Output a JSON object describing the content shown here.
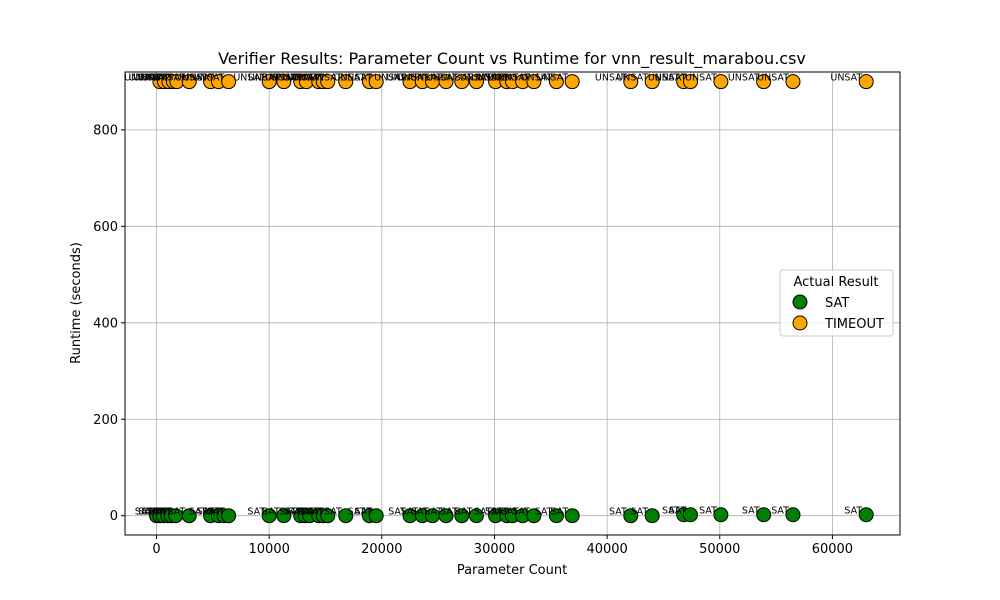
{
  "chart_data": {
    "type": "scatter",
    "title": "Verifier Results: Parameter Count vs Runtime for vnn_result_marabou.csv",
    "xlabel": "Parameter Count",
    "ylabel": "Runtime (seconds)",
    "xlim": [
      -2800,
      66000
    ],
    "ylim": [
      -40,
      920
    ],
    "xticks": [
      0,
      10000,
      20000,
      30000,
      40000,
      50000,
      60000
    ],
    "yticks": [
      0,
      200,
      400,
      600,
      800
    ],
    "grid": true,
    "legend": {
      "title": "Actual Result",
      "placement": "center-right"
    },
    "series": [
      {
        "name": "SAT",
        "color": "#008000",
        "points": [
          {
            "x": 0,
            "y": 0,
            "label": "SAT"
          },
          {
            "x": 300,
            "y": 0,
            "label": "SAT"
          },
          {
            "x": 600,
            "y": 0,
            "label": "SAT"
          },
          {
            "x": 1000,
            "y": 0,
            "label": "SAT"
          },
          {
            "x": 1300,
            "y": 0,
            "label": "SAT"
          },
          {
            "x": 1700,
            "y": 0,
            "label": "SAT"
          },
          {
            "x": 2900,
            "y": 0,
            "label": "SAT"
          },
          {
            "x": 4800,
            "y": 0,
            "label": "SAT"
          },
          {
            "x": 5500,
            "y": 0,
            "label": "SAT"
          },
          {
            "x": 6000,
            "y": 0,
            "label": "SAT"
          },
          {
            "x": 6400,
            "y": 0,
            "label": "SAT"
          },
          {
            "x": 10000,
            "y": 0,
            "label": "SAT"
          },
          {
            "x": 11300,
            "y": 0,
            "label": "SAT"
          },
          {
            "x": 12800,
            "y": 0,
            "label": "SAT"
          },
          {
            "x": 13200,
            "y": 0,
            "label": "SAT"
          },
          {
            "x": 13600,
            "y": 0,
            "label": "SAT"
          },
          {
            "x": 14400,
            "y": 0,
            "label": "SAT"
          },
          {
            "x": 14800,
            "y": 0,
            "label": "SAT"
          },
          {
            "x": 15200,
            "y": 0,
            "label": "SAT"
          },
          {
            "x": 16800,
            "y": 0,
            "label": "SAT"
          },
          {
            "x": 18900,
            "y": 0,
            "label": "SAT"
          },
          {
            "x": 19500,
            "y": 0,
            "label": "SAT"
          },
          {
            "x": 22500,
            "y": 0,
            "label": "SAT"
          },
          {
            "x": 23600,
            "y": 0,
            "label": "SAT"
          },
          {
            "x": 24500,
            "y": 0,
            "label": "SAT"
          },
          {
            "x": 25700,
            "y": 0,
            "label": "SAT"
          },
          {
            "x": 27100,
            "y": 0,
            "label": "SAT"
          },
          {
            "x": 28400,
            "y": 0,
            "label": "SAT"
          },
          {
            "x": 30100,
            "y": 0,
            "label": "SAT"
          },
          {
            "x": 31100,
            "y": 0,
            "label": "SAT"
          },
          {
            "x": 31600,
            "y": 0,
            "label": "SAT"
          },
          {
            "x": 32500,
            "y": 0,
            "label": "SAT"
          },
          {
            "x": 33500,
            "y": 0,
            "label": "SAT"
          },
          {
            "x": 35500,
            "y": 0,
            "label": "SAT"
          },
          {
            "x": 36900,
            "y": 0,
            "label": "SAT"
          },
          {
            "x": 42100,
            "y": 0,
            "label": "SAT"
          },
          {
            "x": 44000,
            "y": 0,
            "label": "SAT"
          },
          {
            "x": 46800,
            "y": 2,
            "label": "SAT"
          },
          {
            "x": 47400,
            "y": 2,
            "label": "SAT"
          },
          {
            "x": 50100,
            "y": 2,
            "label": "SAT"
          },
          {
            "x": 53900,
            "y": 2,
            "label": "SAT"
          },
          {
            "x": 56500,
            "y": 2,
            "label": "SAT"
          },
          {
            "x": 63000,
            "y": 2,
            "label": "SAT"
          }
        ]
      },
      {
        "name": "TIMEOUT",
        "color": "#FFA500",
        "points": [
          {
            "x": 300,
            "y": 900,
            "label": "UNSAT"
          },
          {
            "x": 700,
            "y": 900,
            "label": "UNSAT"
          },
          {
            "x": 1100,
            "y": 900,
            "label": "UNSAT"
          },
          {
            "x": 1500,
            "y": 900,
            "label": "UNSAT"
          },
          {
            "x": 1800,
            "y": 900,
            "label": "UNSAT"
          },
          {
            "x": 2900,
            "y": 900,
            "label": "UNSAT"
          },
          {
            "x": 4800,
            "y": 900,
            "label": "UNSAT"
          },
          {
            "x": 5500,
            "y": 900,
            "label": "UNSAT"
          },
          {
            "x": 6400,
            "y": 900,
            "label": "UNSAT"
          },
          {
            "x": 10000,
            "y": 900,
            "label": "UNSAT"
          },
          {
            "x": 11300,
            "y": 900,
            "label": "UNSAT"
          },
          {
            "x": 12800,
            "y": 900,
            "label": "UNSAT"
          },
          {
            "x": 13300,
            "y": 900,
            "label": "UNSAT"
          },
          {
            "x": 14400,
            "y": 900,
            "label": "UNSAT"
          },
          {
            "x": 14800,
            "y": 900,
            "label": "UNSAT"
          },
          {
            "x": 15200,
            "y": 900,
            "label": "UNSAT"
          },
          {
            "x": 16800,
            "y": 900,
            "label": "UNSAT"
          },
          {
            "x": 18900,
            "y": 900,
            "label": "UNSAT"
          },
          {
            "x": 19500,
            "y": 900,
            "label": "UNSAT"
          },
          {
            "x": 22500,
            "y": 900,
            "label": "UNSAT"
          },
          {
            "x": 23600,
            "y": 900,
            "label": "UNSAT"
          },
          {
            "x": 24500,
            "y": 900,
            "label": "UNSAT"
          },
          {
            "x": 25700,
            "y": 900,
            "label": "UNSAT"
          },
          {
            "x": 27100,
            "y": 900,
            "label": "UNSAT"
          },
          {
            "x": 28400,
            "y": 900,
            "label": "UNSAT"
          },
          {
            "x": 30100,
            "y": 900,
            "label": "UNSAT"
          },
          {
            "x": 31100,
            "y": 900,
            "label": "UNSAT"
          },
          {
            "x": 31600,
            "y": 900,
            "label": "UNSAT"
          },
          {
            "x": 32500,
            "y": 900,
            "label": "UNSAT"
          },
          {
            "x": 33500,
            "y": 900,
            "label": "UNSAT"
          },
          {
            "x": 35500,
            "y": 900,
            "label": "UNSAT"
          },
          {
            "x": 36900,
            "y": 900,
            "label": "UNSAT"
          },
          {
            "x": 42100,
            "y": 900,
            "label": "UNSAT"
          },
          {
            "x": 44000,
            "y": 900,
            "label": "UNSAT"
          },
          {
            "x": 46800,
            "y": 900,
            "label": "UNSAT"
          },
          {
            "x": 47400,
            "y": 900,
            "label": "UNSAT"
          },
          {
            "x": 50100,
            "y": 900,
            "label": "UNSAT"
          },
          {
            "x": 53900,
            "y": 900,
            "label": "UNSAT"
          },
          {
            "x": 56500,
            "y": 900,
            "label": "UNSAT"
          },
          {
            "x": 63000,
            "y": 900,
            "label": "UNSAT"
          }
        ]
      }
    ]
  }
}
